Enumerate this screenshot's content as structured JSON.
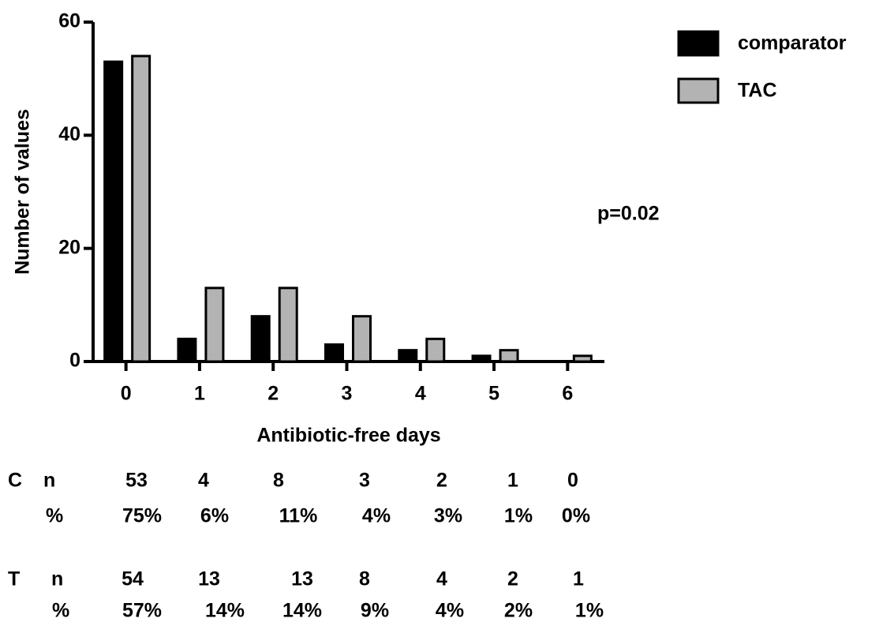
{
  "chart_data": {
    "type": "bar",
    "x_label": "Antibiotic-free days",
    "y_label": "Number of values",
    "annotation": "p=0.02",
    "categories": [
      "0",
      "1",
      "2",
      "3",
      "4",
      "5",
      "6"
    ],
    "series": [
      {
        "name": "comparator",
        "color": "#000000",
        "row_label": "C",
        "count_label": "n",
        "percent_label": "%",
        "values": [
          53,
          4,
          8,
          3,
          2,
          1,
          0
        ],
        "percents": [
          75,
          6,
          11,
          4,
          3,
          1,
          0
        ],
        "percent_labels": [
          "75%",
          "6%",
          "11%",
          "4%",
          "3%",
          "1%",
          "0%"
        ]
      },
      {
        "name": "TAC",
        "color": "#b3b3b3",
        "row_label": "T",
        "count_label": "n",
        "percent_label": "%",
        "values": [
          54,
          13,
          13,
          8,
          4,
          2,
          1
        ],
        "percents": [
          57,
          14,
          14,
          9,
          4,
          2,
          1
        ],
        "percent_labels": [
          "57%",
          "14%",
          "14%",
          "9%",
          "4%",
          "2%",
          "1%"
        ]
      }
    ],
    "ylim": [
      0,
      60
    ],
    "yticks": [
      0,
      20,
      40,
      60
    ],
    "grid": false,
    "legend": "top-right"
  }
}
